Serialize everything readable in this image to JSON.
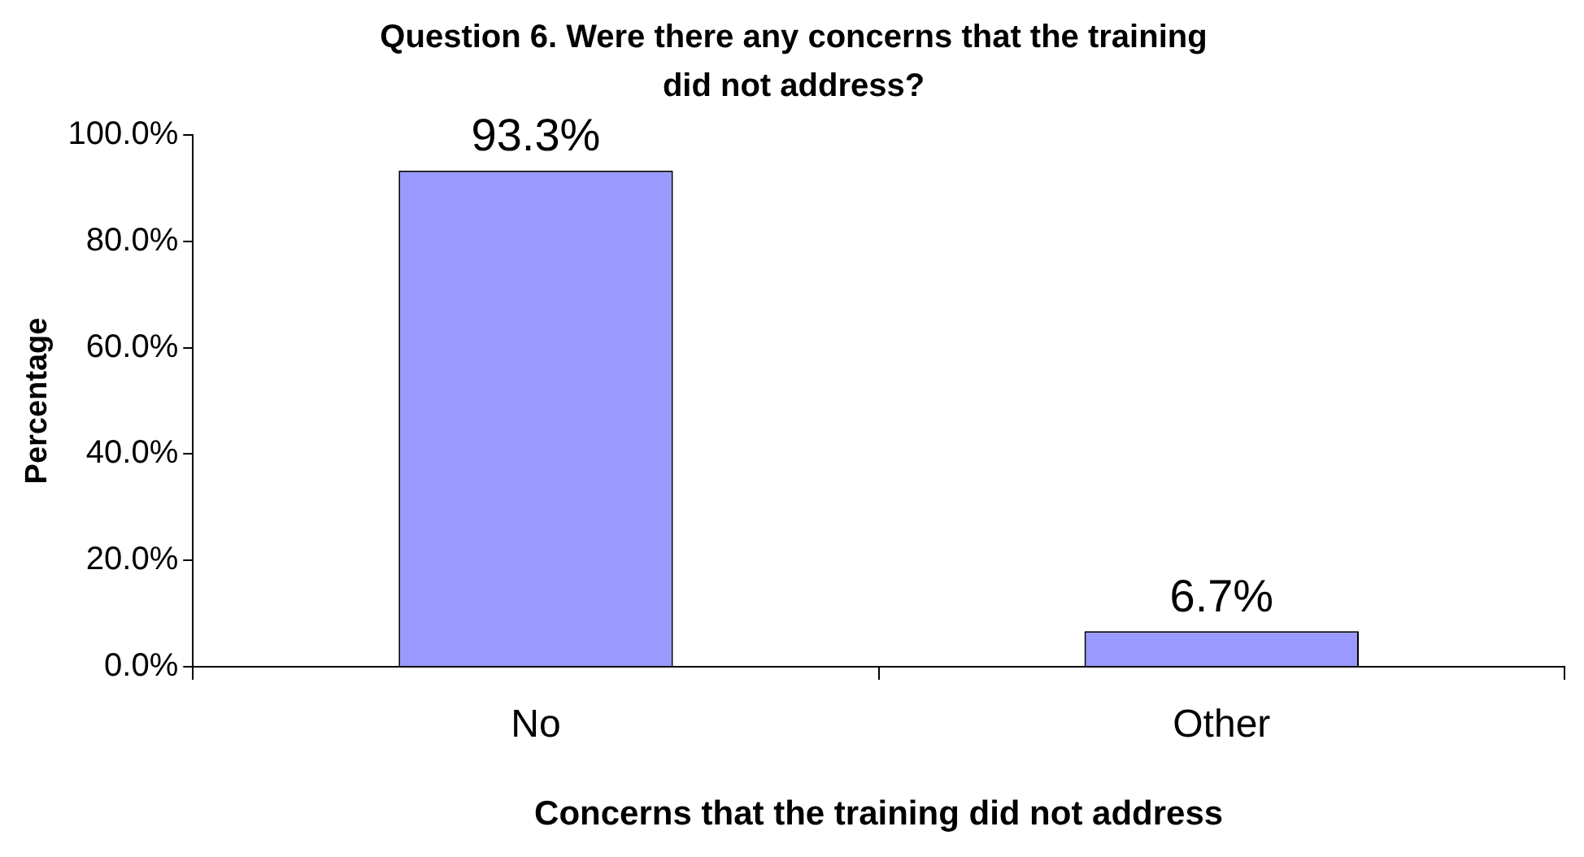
{
  "chart_data": {
    "type": "bar",
    "title": "Question 6. Were there any concerns that the training did not address?",
    "xlabel": "Concerns that the training did not address",
    "ylabel": "Percentage",
    "categories": [
      "No",
      "Other"
    ],
    "values": [
      93.3,
      6.7
    ],
    "value_labels": [
      "93.3%",
      "6.7%"
    ],
    "color": "#9999ff",
    "ylim": [
      0,
      100
    ],
    "yticks": [
      {
        "value": 0,
        "label": "0.0%"
      },
      {
        "value": 20,
        "label": "20.0%"
      },
      {
        "value": 40,
        "label": "40.0%"
      },
      {
        "value": 60,
        "label": "60.0%"
      },
      {
        "value": 80,
        "label": "80.0%"
      },
      {
        "value": 100,
        "label": "100.0%"
      }
    ],
    "grid": false,
    "legend": false
  }
}
